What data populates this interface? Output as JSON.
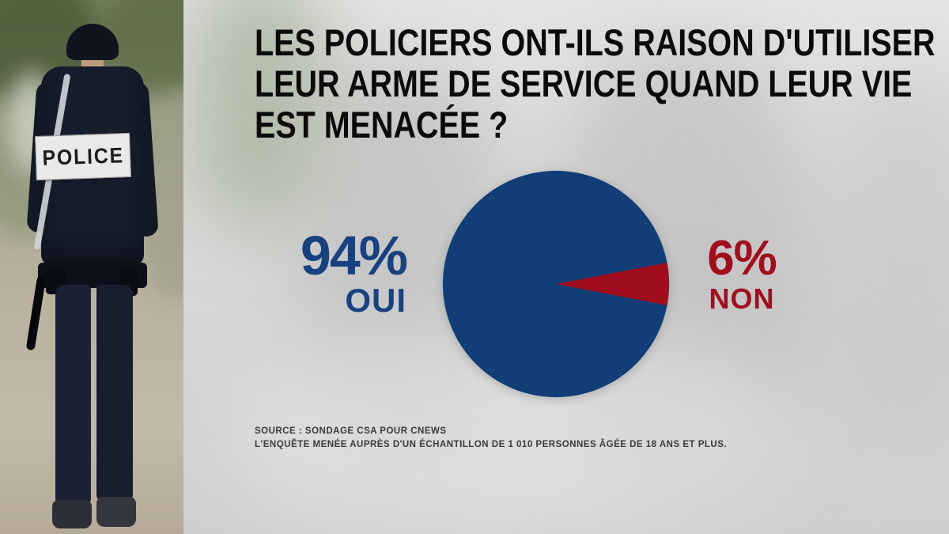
{
  "headline": {
    "lines": [
      "LES POLICIERS ONT-ILS RAISON D'UTILISER",
      "LEUR ARME DE SERVICE QUAND LEUR VIE",
      "EST MENACÉE ?"
    ]
  },
  "photo": {
    "patch_label": "POLICE"
  },
  "results": {
    "oui": {
      "percent": "94%",
      "label": "OUI",
      "color": "#17417f"
    },
    "non": {
      "percent": "6%",
      "label": "NON",
      "color": "#a10e1e"
    }
  },
  "chart_data": {
    "type": "pie",
    "title": "LES POLICIERS ONT-ILS RAISON D'UTILISER LEUR ARME DE SERVICE QUAND LEUR VIE EST MENACÉE ?",
    "labels": [
      "OUI",
      "NON"
    ],
    "values": [
      94,
      6
    ],
    "colors": [
      "#123e78",
      "#a00e1d"
    ],
    "legend_position": "sides",
    "wedge_orientation": "minor-slice-points-right"
  },
  "source": {
    "line1": "SOURCE : SONDAGE CSA POUR CNEWS",
    "line2": "L'ENQUÊTE MENÉE AUPRÈS D'UN ÉCHANTILLON DE 1 010 PERSONNES ÂGÉE DE 18 ANS ET PLUS."
  }
}
